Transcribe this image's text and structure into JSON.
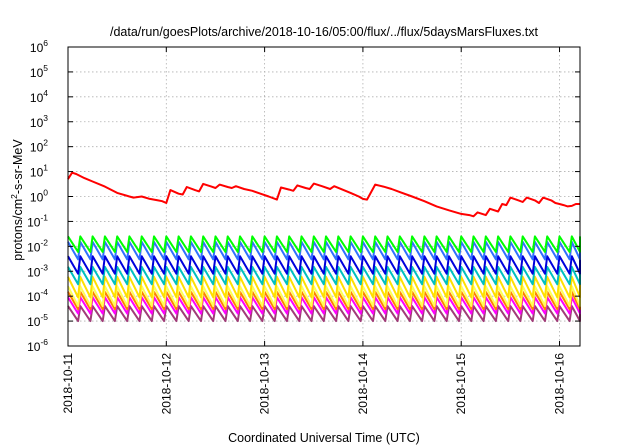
{
  "chart_data": {
    "type": "line",
    "title": "/data/run/goesPlots/archive/2018-10-16/05:00/flux/../flux/5daysMarsFluxes.txt",
    "xlabel": "Coordinated Universal Time (UTC)",
    "ylabel": {
      "prefix": "protons/cm",
      "sup": "2",
      "suffix": "-s-sr-MeV"
    },
    "x_axis": {
      "unit": "days",
      "range": [
        "2018-10-11 00:00",
        "2018-10-16 05:00"
      ],
      "ticks": [
        "2018-10-11",
        "2018-10-12",
        "2018-10-13",
        "2018-10-14",
        "2018-10-15",
        "2018-10-16"
      ]
    },
    "y_axis": {
      "scale": "log",
      "ylim": [
        1e-06,
        1000000.0
      ],
      "ticks": [
        {
          "base": "10",
          "exp": "6"
        },
        {
          "base": "10",
          "exp": "5"
        },
        {
          "base": "10",
          "exp": "4"
        },
        {
          "base": "10",
          "exp": "3"
        },
        {
          "base": "10",
          "exp": "2"
        },
        {
          "base": "10",
          "exp": "1"
        },
        {
          "base": "10",
          "exp": "0"
        },
        {
          "base": "10",
          "exp": "-1"
        },
        {
          "base": "10",
          "exp": "-2"
        },
        {
          "base": "10",
          "exp": "-3"
        },
        {
          "base": "10",
          "exp": "-4"
        },
        {
          "base": "10",
          "exp": "-5"
        },
        {
          "base": "10",
          "exp": "-6"
        }
      ]
    },
    "grid": true,
    "legend": "none",
    "series": [
      {
        "color": "#ff0000",
        "points": [
          [
            "2018-10-11 00:00",
            5.0
          ],
          [
            "2018-10-11 01:00",
            9.0
          ],
          [
            "2018-10-11 02:00",
            8.0
          ],
          [
            "2018-10-11 04:00",
            5.5
          ],
          [
            "2018-10-11 06:00",
            4.0
          ],
          [
            "2018-10-11 09:00",
            2.5
          ],
          [
            "2018-10-11 12:00",
            1.4
          ],
          [
            "2018-10-11 15:00",
            1.0
          ],
          [
            "2018-10-11 16:00",
            0.9
          ],
          [
            "2018-10-11 18:00",
            1.0
          ],
          [
            "2018-10-11 20:00",
            0.8
          ],
          [
            "2018-10-11 22:00",
            0.7
          ],
          [
            "2018-10-11 23:00",
            0.65
          ],
          [
            "2018-10-12 00:00",
            0.55
          ],
          [
            "2018-10-12 01:00",
            1.8
          ],
          [
            "2018-10-12 03:00",
            1.3
          ],
          [
            "2018-10-12 04:00",
            1.2
          ],
          [
            "2018-10-12 05:00",
            2.4
          ],
          [
            "2018-10-12 07:00",
            1.8
          ],
          [
            "2018-10-12 08:00",
            1.6
          ],
          [
            "2018-10-12 09:00",
            3.2
          ],
          [
            "2018-10-12 11:00",
            2.5
          ],
          [
            "2018-10-12 12:00",
            2.2
          ],
          [
            "2018-10-12 13:00",
            3.0
          ],
          [
            "2018-10-12 15:00",
            2.4
          ],
          [
            "2018-10-12 16:00",
            2.2
          ],
          [
            "2018-10-12 17:00",
            2.6
          ],
          [
            "2018-10-12 19:00",
            2.0
          ],
          [
            "2018-10-12 21:00",
            1.7
          ],
          [
            "2018-10-12 23:00",
            1.3
          ],
          [
            "2018-10-13 01:00",
            1.0
          ],
          [
            "2018-10-13 03:00",
            0.75
          ],
          [
            "2018-10-13 04:00",
            2.3
          ],
          [
            "2018-10-13 06:00",
            1.9
          ],
          [
            "2018-10-13 07:00",
            1.7
          ],
          [
            "2018-10-13 08:00",
            2.8
          ],
          [
            "2018-10-13 10:00",
            2.2
          ],
          [
            "2018-10-13 11:00",
            2.0
          ],
          [
            "2018-10-13 12:00",
            3.3
          ],
          [
            "2018-10-13 14:00",
            2.6
          ],
          [
            "2018-10-13 16:00",
            2.0
          ],
          [
            "2018-10-13 17:00",
            2.6
          ],
          [
            "2018-10-13 19:00",
            1.9
          ],
          [
            "2018-10-13 21:00",
            1.4
          ],
          [
            "2018-10-13 23:00",
            1.0
          ],
          [
            "2018-10-14 00:00",
            0.8
          ],
          [
            "2018-10-14 01:00",
            0.75
          ],
          [
            "2018-10-14 03:00",
            3.0
          ],
          [
            "2018-10-14 05:00",
            2.5
          ],
          [
            "2018-10-14 07:00",
            2.0
          ],
          [
            "2018-10-14 09:00",
            1.5
          ],
          [
            "2018-10-14 12:00",
            1.0
          ],
          [
            "2018-10-14 15:00",
            0.65
          ],
          [
            "2018-10-14 18:00",
            0.4
          ],
          [
            "2018-10-14 21:00",
            0.28
          ],
          [
            "2018-10-15 00:00",
            0.2
          ],
          [
            "2018-10-15 02:00",
            0.18
          ],
          [
            "2018-10-15 03:00",
            0.16
          ],
          [
            "2018-10-15 04:00",
            0.23
          ],
          [
            "2018-10-15 06:00",
            0.18
          ],
          [
            "2018-10-15 07:00",
            0.32
          ],
          [
            "2018-10-15 09:00",
            0.25
          ],
          [
            "2018-10-15 10:00",
            0.5
          ],
          [
            "2018-10-15 11:00",
            0.45
          ],
          [
            "2018-10-15 12:00",
            0.9
          ],
          [
            "2018-10-15 14:00",
            0.7
          ],
          [
            "2018-10-15 15:00",
            0.6
          ],
          [
            "2018-10-15 16:00",
            0.9
          ],
          [
            "2018-10-15 18:00",
            0.7
          ],
          [
            "2018-10-15 19:00",
            0.55
          ],
          [
            "2018-10-15 20:00",
            0.9
          ],
          [
            "2018-10-15 22:00",
            0.7
          ],
          [
            "2018-10-15 23:00",
            0.55
          ],
          [
            "2018-10-16 00:00",
            0.5
          ],
          [
            "2018-10-16 01:00",
            0.45
          ],
          [
            "2018-10-16 02:00",
            0.4
          ],
          [
            "2018-10-16 03:00",
            0.42
          ],
          [
            "2018-10-16 04:00",
            0.5
          ],
          [
            "2018-10-16 05:00",
            0.5
          ]
        ]
      },
      {
        "color": "#00ff00",
        "range": [
          0.006,
          0.025
        ],
        "period_hours": 3
      },
      {
        "color": "#3070ff",
        "range": [
          0.003,
          0.015
        ],
        "period_hours": 3
      },
      {
        "color": "#0000dd",
        "range": [
          0.0008,
          0.004
        ],
        "period_hours": 3
      },
      {
        "color": "#00c0c0",
        "range": [
          0.0003,
          0.0015
        ],
        "period_hours": 3
      },
      {
        "color": "#ffe000",
        "range": [
          9e-05,
          0.0006
        ],
        "period_hours": 3
      },
      {
        "color": "#ffff55",
        "range": [
          4e-05,
          0.00025
        ],
        "period_hours": 3
      },
      {
        "color": "#ff8000",
        "range": [
          3e-05,
          0.00015
        ],
        "period_hours": 3
      },
      {
        "color": "#ff00ff",
        "range": [
          2e-05,
          9e-05
        ],
        "period_hours": 3
      },
      {
        "color": "#a03c78",
        "range": [
          1e-05,
          4e-05
        ],
        "period_hours": 3
      }
    ]
  }
}
